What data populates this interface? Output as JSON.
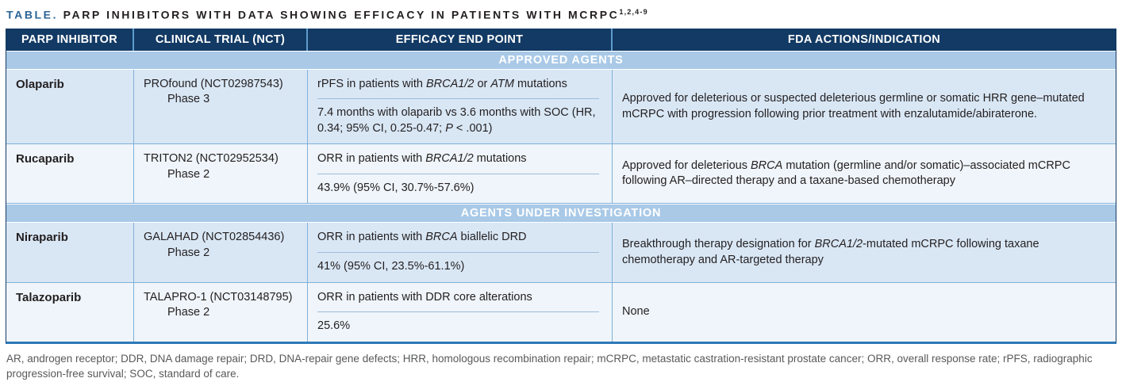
{
  "title": {
    "prefix": "TABLE.",
    "text": " PARP INHIBITORS WITH DATA SHOWING EFFICACY IN PATIENTS WITH MCRPC",
    "superscript": "1,2,4-9"
  },
  "columns": [
    "PARP INHIBITOR",
    "CLINICAL TRIAL (NCT)",
    "EFFICACY END POINT",
    "FDA ACTIONS/INDICATION"
  ],
  "sections": [
    {
      "label": "APPROVED AGENTS",
      "rows": [
        {
          "drug": "Olaparib",
          "trial": "PROfound (NCT02987543)",
          "phase": "Phase 3",
          "endpoint_primary": [
            {
              "t": "rPFS in patients with "
            },
            {
              "t": "BRCA1/2",
              "i": true
            },
            {
              "t": " or "
            },
            {
              "t": "ATM",
              "i": true
            },
            {
              "t": " mutations"
            }
          ],
          "endpoint_result": [
            {
              "t": "7.4 months with olaparib vs 3.6 months with SOC (HR, 0.34; 95% CI, 0.25-0.47; "
            },
            {
              "t": "P",
              "i": true
            },
            {
              "t": " < .001)"
            }
          ],
          "fda": [
            {
              "t": "Approved for deleterious or suspected deleterious germline or somatic HRR gene–mutated mCRPC with progression following prior treatment with enzalutamide/abiraterone."
            }
          ]
        },
        {
          "drug": "Rucaparib",
          "trial": "TRITON2 (NCT02952534)",
          "phase": "Phase 2",
          "endpoint_primary": [
            {
              "t": "ORR in patients with "
            },
            {
              "t": "BRCA1/2",
              "i": true
            },
            {
              "t": " mutations"
            }
          ],
          "endpoint_result": [
            {
              "t": "43.9% (95% CI, 30.7%-57.6%)"
            }
          ],
          "fda": [
            {
              "t": "Approved for deleterious "
            },
            {
              "t": "BRCA",
              "i": true
            },
            {
              "t": " mutation (germline and/or somatic)–associated mCRPC following AR–directed therapy and a taxane-based chemotherapy"
            }
          ]
        }
      ]
    },
    {
      "label": "AGENTS UNDER INVESTIGATION",
      "rows": [
        {
          "drug": "Niraparib",
          "trial": "GALAHAD (NCT02854436)",
          "phase": "Phase 2",
          "endpoint_primary": [
            {
              "t": "ORR in patients with "
            },
            {
              "t": "BRCA",
              "i": true
            },
            {
              "t": " biallelic DRD"
            }
          ],
          "endpoint_result": [
            {
              "t": "41% (95% CI, 23.5%-61.1%)"
            }
          ],
          "fda": [
            {
              "t": "Breakthrough therapy designation for "
            },
            {
              "t": "BRCA1/2",
              "i": true
            },
            {
              "t": "-mutated mCRPC following taxane chemotherapy and AR-targeted therapy"
            }
          ]
        },
        {
          "drug": "Talazoparib",
          "trial": "TALAPRO-1 (NCT03148795)",
          "phase": "Phase 2",
          "endpoint_primary": [
            {
              "t": "ORR in patients with DDR core alterations"
            }
          ],
          "endpoint_result": [
            {
              "t": "25.6%"
            }
          ],
          "fda": [
            {
              "t": "None"
            }
          ]
        }
      ]
    }
  ],
  "footnote": "AR, androgen receptor; DDR, DNA damage repair; DRD, DNA-repair gene defects; HRR, homologous recombination repair; mCRPC, metastatic castration-resistant prostate cancer; ORR, overall response rate; rPFS, radiographic progression-free survival; SOC, standard of care.",
  "colors": {
    "header_bg": "#123a64",
    "band_bg": "#a9c9e7",
    "row_light": "#d9e7f5",
    "row_lighter": "#eff5fa",
    "cell_border": "#7fb0d8",
    "bottom_border": "#2e79b8",
    "title_accent": "#2a6496",
    "body_text": "#231f20",
    "footnote_text": "#58595b"
  }
}
